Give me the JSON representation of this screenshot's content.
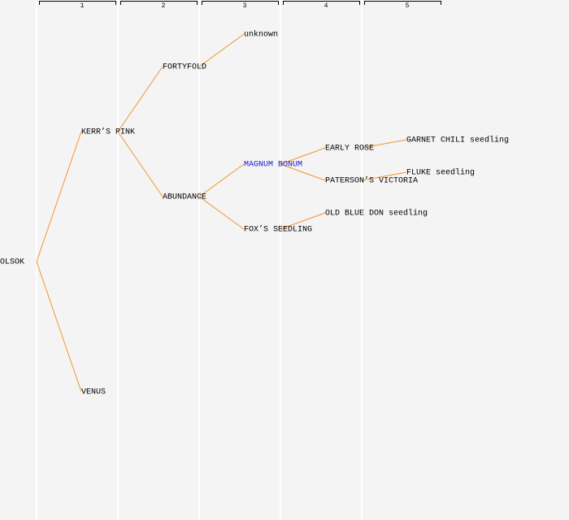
{
  "generations": [
    "1",
    "2",
    "3",
    "4",
    "5"
  ],
  "nodes": [
    "OLSOK",
    "KERR’S PINK",
    "VENUS",
    "FORTYFOLD",
    "ABUNDANCE",
    "unknown",
    "MAGNUM BONUM",
    "FOX’S SEEDLING",
    "EARLY ROSE",
    "PATERSON’S VICTORIA",
    "OLD BLUE DON seedling",
    "GARNET CHILI seedling",
    "FLUKE seedling"
  ]
}
